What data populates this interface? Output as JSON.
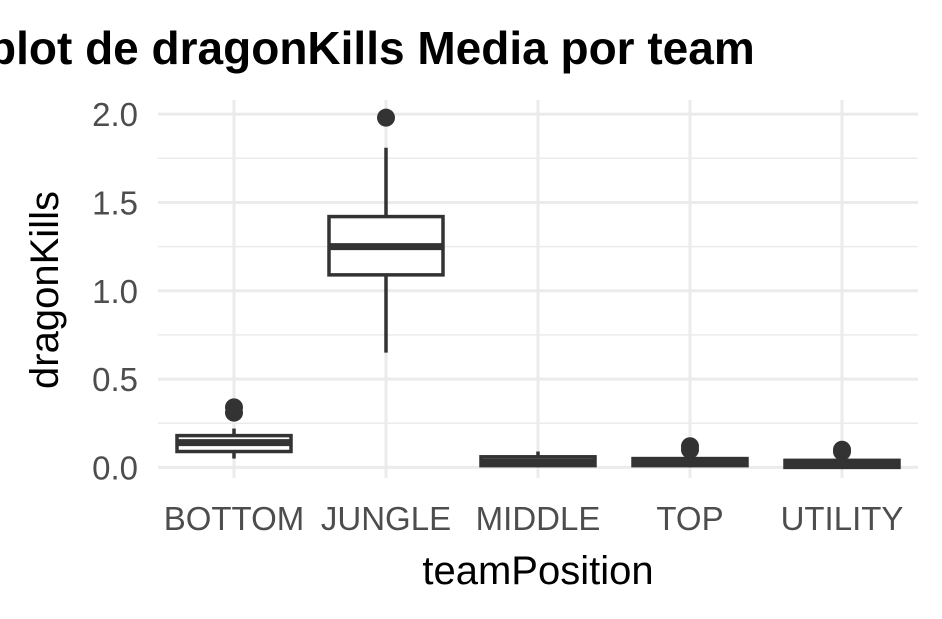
{
  "chart_data": {
    "type": "boxplot",
    "title": "plot de dragonKills Media por team",
    "xlabel": "teamPosition",
    "ylabel": "dragonKills",
    "categories": [
      "BOTTOM",
      "JUNGLE",
      "MIDDLE",
      "TOP",
      "UTILITY"
    ],
    "yticks": [
      0.0,
      0.5,
      1.0,
      1.5,
      2.0
    ],
    "ytick_labels": [
      "0.0",
      "0.5",
      "1.0",
      "1.5",
      "2.0"
    ],
    "ylim": [
      -0.06,
      2.08
    ],
    "grid": true,
    "boxes": [
      {
        "name": "BOTTOM",
        "whisker_low": 0.05,
        "q1": 0.09,
        "median": 0.14,
        "q3": 0.18,
        "whisker_high": 0.22,
        "outliers": [
          0.31,
          0.34
        ]
      },
      {
        "name": "JUNGLE",
        "whisker_low": 0.65,
        "q1": 1.09,
        "median": 1.25,
        "q3": 1.42,
        "whisker_high": 1.81,
        "outliers": [
          1.98
        ]
      },
      {
        "name": "MIDDLE",
        "whisker_low": 0.0,
        "q1": 0.01,
        "median": 0.03,
        "q3": 0.06,
        "whisker_high": 0.09,
        "outliers": []
      },
      {
        "name": "TOP",
        "whisker_low": 0.0,
        "q1": 0.01,
        "median": 0.03,
        "q3": 0.05,
        "whisker_high": 0.07,
        "outliers": [
          0.1,
          0.12
        ]
      },
      {
        "name": "UTILITY",
        "whisker_low": 0.0,
        "q1": 0.0,
        "median": 0.02,
        "q3": 0.04,
        "whisker_high": 0.06,
        "outliers": [
          0.09,
          0.1
        ]
      }
    ],
    "colors": {
      "box_line": "#333333",
      "grid": "#ebebeb",
      "fill": "#ffffff"
    }
  }
}
